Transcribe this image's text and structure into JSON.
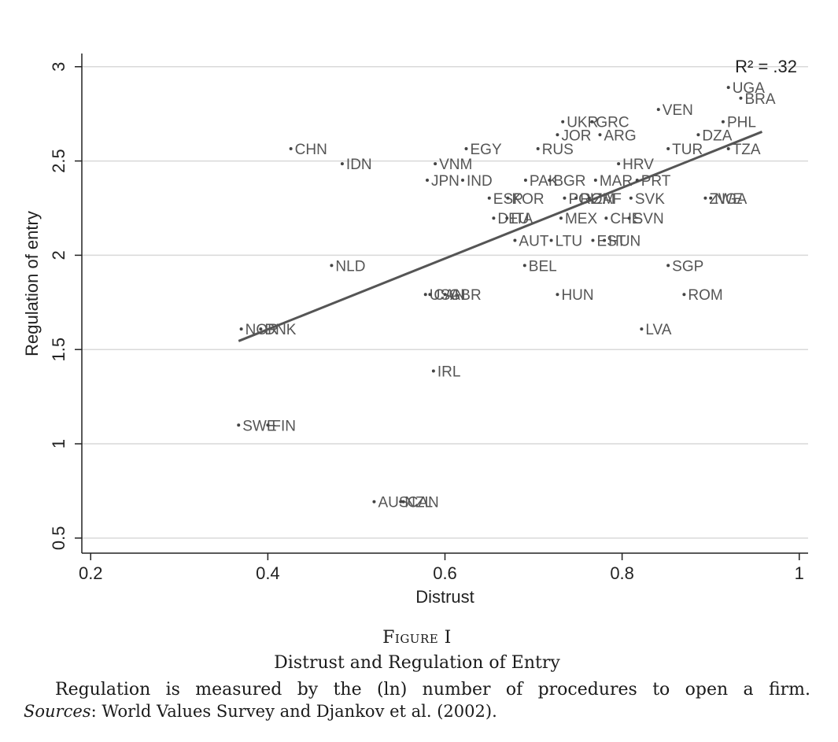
{
  "chart_data": {
    "type": "scatter",
    "xlabel": "Distrust",
    "ylabel": "Regulation of entry",
    "xlim": [
      0.19,
      1.01
    ],
    "ylim": [
      0.42,
      3.07
    ],
    "xticks": [
      0.2,
      0.4,
      0.6,
      0.8,
      1
    ],
    "xtick_labels": [
      "0.2",
      "0.4",
      "0.6",
      "0.8",
      "1"
    ],
    "yticks": [
      0.5,
      1,
      1.5,
      2,
      2.5,
      3
    ],
    "ytick_labels": [
      "0.5",
      "1",
      "1.5",
      "2",
      "2.5",
      "3"
    ],
    "grid": true,
    "annotation": "R² = .32",
    "fit_line": {
      "x": [
        0.367,
        0.958
      ],
      "y": [
        1.545,
        2.655
      ]
    },
    "points": [
      {
        "label": "CHN",
        "x": 0.426,
        "y": 2.565
      },
      {
        "label": "IDN",
        "x": 0.484,
        "y": 2.485
      },
      {
        "label": "VNM",
        "x": 0.589,
        "y": 2.485
      },
      {
        "label": "EGY",
        "x": 0.624,
        "y": 2.565
      },
      {
        "label": "JPN",
        "x": 0.58,
        "y": 2.398
      },
      {
        "label": "IND",
        "x": 0.62,
        "y": 2.398
      },
      {
        "label": "RUS",
        "x": 0.705,
        "y": 2.565
      },
      {
        "label": "UKR",
        "x": 0.733,
        "y": 2.708
      },
      {
        "label": "GRC",
        "x": 0.766,
        "y": 2.708
      },
      {
        "label": "JOR",
        "x": 0.727,
        "y": 2.639
      },
      {
        "label": "ARG",
        "x": 0.775,
        "y": 2.639
      },
      {
        "label": "VEN",
        "x": 0.841,
        "y": 2.773
      },
      {
        "label": "UGA",
        "x": 0.92,
        "y": 2.89
      },
      {
        "label": "BRA",
        "x": 0.934,
        "y": 2.833
      },
      {
        "label": "PHL",
        "x": 0.914,
        "y": 2.708
      },
      {
        "label": "DZA",
        "x": 0.886,
        "y": 2.639
      },
      {
        "label": "TUR",
        "x": 0.852,
        "y": 2.565
      },
      {
        "label": "TZA",
        "x": 0.92,
        "y": 2.565
      },
      {
        "label": "HRV",
        "x": 0.796,
        "y": 2.485
      },
      {
        "label": "PAK",
        "x": 0.691,
        "y": 2.398
      },
      {
        "label": "BGR",
        "x": 0.718,
        "y": 2.398
      },
      {
        "label": "MAR",
        "x": 0.77,
        "y": 2.398
      },
      {
        "label": "PRT",
        "x": 0.817,
        "y": 2.398
      },
      {
        "label": "ESP",
        "x": 0.65,
        "y": 2.303
      },
      {
        "label": "KOR",
        "x": 0.671,
        "y": 2.303
      },
      {
        "label": "POL",
        "x": 0.735,
        "y": 2.303
      },
      {
        "label": "ROM",
        "x": 0.748,
        "y": 2.303
      },
      {
        "label": "ZAF",
        "x": 0.763,
        "y": 2.303
      },
      {
        "label": "SVK",
        "x": 0.81,
        "y": 2.303
      },
      {
        "label": "ZWE",
        "x": 0.894,
        "y": 2.303
      },
      {
        "label": "NGA",
        "x": 0.9,
        "y": 2.303
      },
      {
        "label": "DEU",
        "x": 0.655,
        "y": 2.197
      },
      {
        "label": "ITA",
        "x": 0.67,
        "y": 2.197
      },
      {
        "label": "MEX",
        "x": 0.731,
        "y": 2.197
      },
      {
        "label": "CHE",
        "x": 0.782,
        "y": 2.197
      },
      {
        "label": "SVN",
        "x": 0.808,
        "y": 2.197
      },
      {
        "label": "AUT",
        "x": 0.679,
        "y": 2.079
      },
      {
        "label": "LTU",
        "x": 0.72,
        "y": 2.079
      },
      {
        "label": "EST",
        "x": 0.767,
        "y": 2.079
      },
      {
        "label": "HUN",
        "x": 0.78,
        "y": 2.079
      },
      {
        "label": "NLD",
        "x": 0.472,
        "y": 1.946
      },
      {
        "label": "BEL",
        "x": 0.69,
        "y": 1.946
      },
      {
        "label": "SGP",
        "x": 0.852,
        "y": 1.946
      },
      {
        "label": "USA",
        "x": 0.578,
        "y": 1.792
      },
      {
        "label": "CAN",
        "x": 0.583,
        "y": 1.792
      },
      {
        "label": "GBR",
        "x": 0.6,
        "y": 1.792
      },
      {
        "label": "HUN",
        "x": 0.727,
        "y": 1.792
      },
      {
        "label": "ROM",
        "x": 0.87,
        "y": 1.792
      },
      {
        "label": "NOR",
        "x": 0.37,
        "y": 1.609
      },
      {
        "label": "DNK",
        "x": 0.392,
        "y": 1.609
      },
      {
        "label": "LVA",
        "x": 0.822,
        "y": 1.609
      },
      {
        "label": "IRL",
        "x": 0.587,
        "y": 1.386
      },
      {
        "label": "SWE",
        "x": 0.367,
        "y": 1.099
      },
      {
        "label": "FIN",
        "x": 0.4,
        "y": 1.099
      },
      {
        "label": "AUS",
        "x": 0.52,
        "y": 0.693
      },
      {
        "label": "NZL",
        "x": 0.55,
        "y": 0.693
      },
      {
        "label": "CAN",
        "x": 0.553,
        "y": 0.693
      }
    ]
  },
  "caption": {
    "figure_label": "Figure I",
    "title": "Distrust and Regulation of Entry",
    "note": "Regulation is measured by the (ln) number of procedures to open a firm.",
    "sources_label": "Sources",
    "sources_text": ": World Values Survey and Djankov et al. (2002)."
  }
}
